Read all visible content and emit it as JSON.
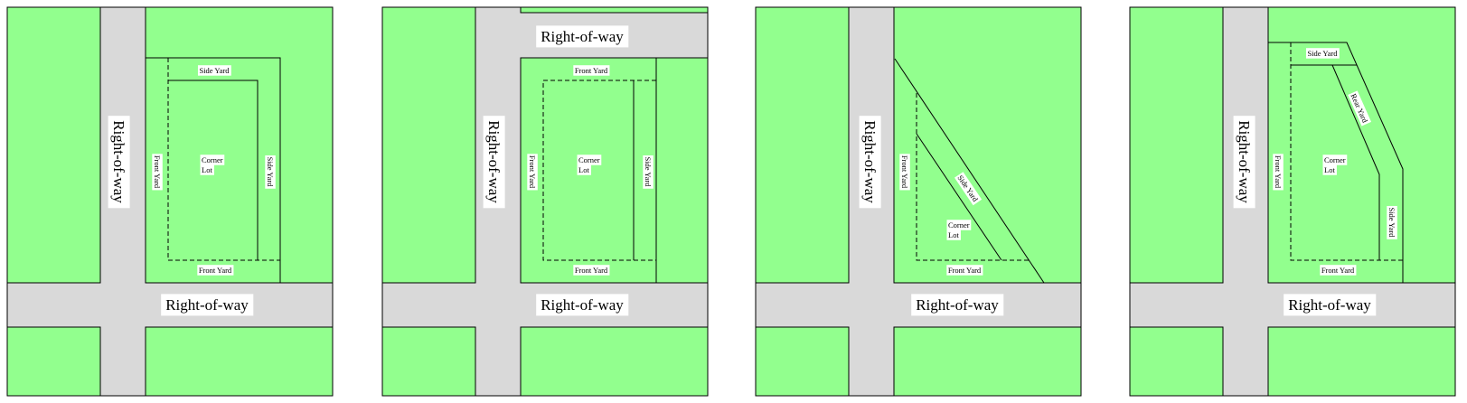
{
  "colors": {
    "lot_fill": "#92FF8E",
    "right_of_way": "#D9D9D9",
    "label_bg": "#FFFFFF",
    "line": "#000000"
  },
  "labels": {
    "right_of_way": "Right-of-way",
    "side_yard": "Side Yard",
    "front_yard": "Front Yard",
    "rear_yard": "Rear Yard",
    "corner_line1": "Corner",
    "corner_line2": "Lot"
  },
  "panels": [
    {
      "id": "corner-lot-rectangular",
      "labels": [
        "Side Yard",
        "Front Yard",
        "Corner Lot",
        "Side Yard",
        "Front Yard"
      ]
    },
    {
      "id": "corner-lot-between-streets",
      "labels": [
        "Front Yard",
        "Front Yard",
        "Corner Lot",
        "Side Yard",
        "Front Yard"
      ]
    },
    {
      "id": "corner-lot-triangular",
      "labels": [
        "Front Yard",
        "Side Yard",
        "Corner Lot",
        "Front Yard"
      ]
    },
    {
      "id": "corner-lot-irregular",
      "labels": [
        "Side Yard",
        "Rear Yard",
        "Front Yard",
        "Corner Lot",
        "Side Yard",
        "Front Yard"
      ]
    }
  ]
}
